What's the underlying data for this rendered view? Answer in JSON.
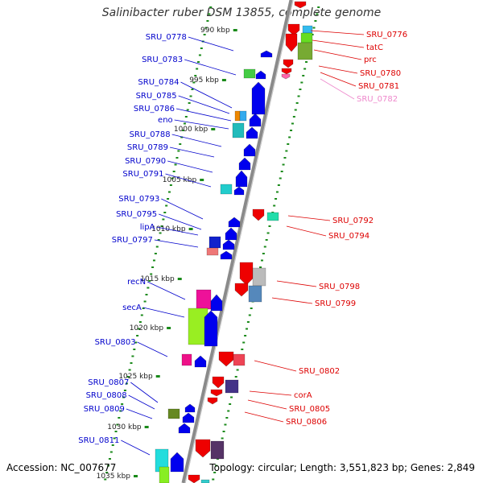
{
  "title": "Salinibacter ruber DSM 13855, complete genome",
  "footer": {
    "accession": "Accession: NC_007677",
    "summary": "Topology: circular; Length: 3,551,823 bp; Genes: 2,849"
  },
  "colors": {
    "backbone": "#8a8a8a",
    "tick": "#1a8a1a",
    "left_label": "#0000cc",
    "right_label": "#dd0000",
    "right_label_faded": "#ee88cc"
  },
  "ruler_ticks": [
    "990 kbp",
    "995 kbp",
    "1000 kbp",
    "1005 kbp",
    "1010 kbp",
    "1015 kbp",
    "1020 kbp",
    "1025 kbp",
    "1030 kbp",
    "1035 kbp"
  ],
  "left_genes": [
    "SRU_0778",
    "SRU_0783",
    "SRU_0784",
    "SRU_0785",
    "SRU_0786",
    "eno",
    "SRU_0788",
    "SRU_0789",
    "SRU_0790",
    "SRU_0791",
    "SRU_0793",
    "SRU_0795",
    "lipA",
    "SRU_0797",
    "recN",
    "secA",
    "SRU_0803",
    "SRU_0807",
    "SRU_0808",
    "SRU_0809",
    "SRU_0811"
  ],
  "right_genes": [
    "SRU_0776",
    "tatC",
    "prc",
    "SRU_0780",
    "SRU_0781",
    "SRU_0782",
    "SRU_0792",
    "SRU_0794",
    "SRU_0798",
    "SRU_0799",
    "SRU_0802",
    "corA",
    "SRU_0805",
    "SRU_0806"
  ]
}
